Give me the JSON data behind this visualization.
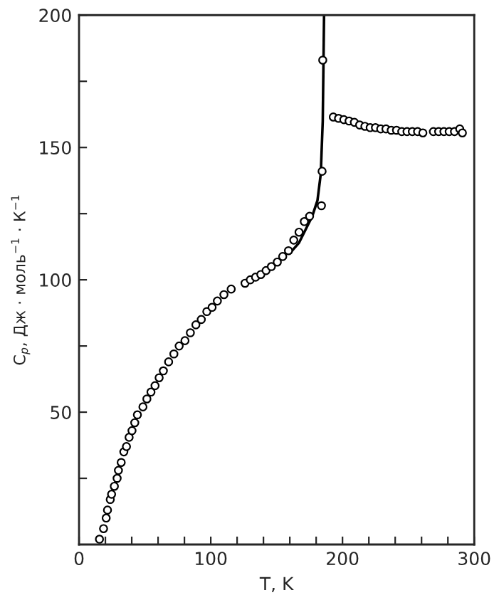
{
  "chart_data": {
    "type": "scatter",
    "xlabel": "T, K",
    "ylabel": "C$_{p}$, Дж · моль$^{−1}$ · К$^{−1}$",
    "xlim": [
      0,
      300
    ],
    "ylim": [
      0,
      200
    ],
    "xticks": [
      0,
      {
        "value": 20,
        "label": null
      },
      {
        "value": 40,
        "label": null
      },
      {
        "value": 60,
        "label": null
      },
      {
        "value": 80,
        "label": null
      },
      100,
      {
        "value": 120,
        "label": null
      },
      {
        "value": 140,
        "label": null
      },
      {
        "value": 160,
        "label": null
      },
      {
        "value": 180,
        "label": null
      },
      200,
      {
        "value": 220,
        "label": null
      },
      {
        "value": 240,
        "label": null
      },
      {
        "value": 260,
        "label": null
      },
      {
        "value": 280,
        "label": null
      },
      300
    ],
    "yticks": [
      {
        "value": 25,
        "label": null
      },
      50,
      {
        "value": 75,
        "label": null
      },
      100,
      {
        "value": 125,
        "label": null
      },
      150,
      {
        "value": 175,
        "label": null
      },
      200
    ],
    "marker": "circle",
    "grid": false,
    "legend": false,
    "series": [
      {
        "color": "#000000",
        "x": [
          15.5,
          18.6,
          20.6,
          21.6,
          23.7,
          24.7,
          26.8,
          28.9,
          29.9,
          32,
          34,
          36,
          38,
          40.2,
          42.3,
          44.3,
          48.5,
          51.5,
          54.6,
          57.7,
          60.8,
          64,
          68,
          72,
          76,
          80.4,
          84.5,
          88.7,
          92.8,
          97,
          101,
          105,
          110,
          115.5,
          126,
          130,
          134,
          138,
          142,
          146,
          150.5,
          154.6,
          159,
          163,
          167,
          171,
          175,
          184,
          184.5,
          185
        ],
        "values": [
          2,
          6,
          10,
          13,
          17,
          19,
          22,
          25,
          28,
          31,
          35,
          37,
          40.5,
          43,
          46,
          49,
          52,
          55,
          57.6,
          60,
          63,
          65.6,
          69,
          72,
          75,
          77,
          80,
          83,
          85,
          88,
          89.6,
          92,
          94.4,
          96.5,
          98.7,
          100,
          101,
          102,
          103.5,
          105,
          106.7,
          108.8,
          111,
          115,
          118,
          122,
          124,
          128,
          141,
          183
        ]
      },
      {
        "type": "line",
        "color": "#000000",
        "marker": "none",
        "line_style": "solid",
        "x": [
          160,
          167,
          172,
          177,
          181,
          183.5,
          185,
          186
        ],
        "values": [
          110,
          114,
          119,
          124,
          130,
          140,
          160,
          200
        ]
      },
      {
        "color": "#000000",
        "x": [
          193,
          197,
          201,
          205,
          209,
          213,
          217,
          221,
          225,
          229,
          233,
          237,
          241,
          245,
          249,
          253,
          257,
          261,
          269,
          273,
          277,
          281,
          285,
          289,
          291
        ],
        "values": [
          161.5,
          161,
          160.5,
          160,
          159.5,
          158.5,
          158,
          157.5,
          157.5,
          157,
          157,
          156.5,
          156.5,
          156,
          156,
          156,
          156,
          155.5,
          156,
          156,
          156,
          156,
          156,
          157,
          155.5
        ]
      }
    ]
  }
}
